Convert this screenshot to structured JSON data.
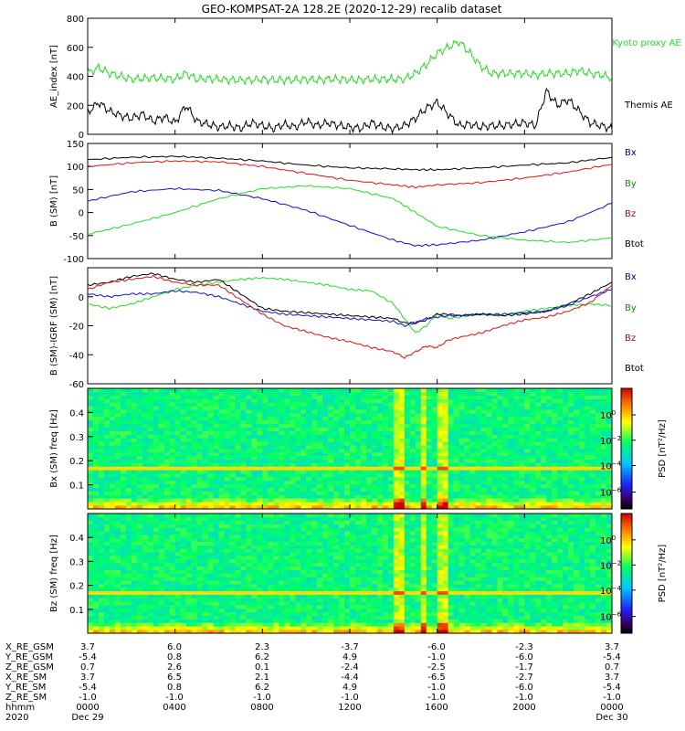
{
  "title": "GEO-KOMPSAT-2A 128.2E (2020-12-29) recalib dataset",
  "colors": {
    "black": "#000000",
    "red": "#e01010",
    "green": "#22dd22",
    "blue": "#1010cc",
    "bx": "#000080",
    "by": "#009a00",
    "bz": "#c00000"
  },
  "chart_data": [
    {
      "type": "line",
      "name": "ae-index",
      "ylabel": "AE_index [nT]",
      "ylim": [
        0,
        800
      ],
      "yticks": [
        0,
        200,
        400,
        600,
        800
      ],
      "xlim_hours": [
        0,
        24
      ],
      "legend": [
        {
          "label": "Kyoto proxy AE",
          "color": "#22dd22"
        },
        {
          "label": "Themis AE",
          "color": "#000000"
        }
      ],
      "series": [
        {
          "name": "Kyoto proxy AE",
          "color": "#22dd22",
          "x": [
            0,
            0.5,
            1,
            1.5,
            2,
            2.5,
            3,
            3.5,
            4,
            4.5,
            5,
            5.5,
            6,
            6.5,
            7,
            7.5,
            8,
            8.5,
            9,
            9.5,
            10,
            10.5,
            11,
            11.5,
            12,
            12.5,
            13,
            13.5,
            14,
            14.5,
            15,
            15.5,
            16,
            16.5,
            17,
            17.5,
            18,
            18.5,
            19,
            19.5,
            20,
            20.5,
            21,
            21.5,
            22,
            22.5,
            23,
            23.5,
            24
          ],
          "y": [
            420,
            460,
            420,
            400,
            380,
            385,
            390,
            385,
            380,
            420,
            380,
            385,
            380,
            375,
            375,
            375,
            380,
            375,
            375,
            375,
            380,
            375,
            380,
            380,
            375,
            375,
            380,
            380,
            380,
            380,
            420,
            480,
            560,
            600,
            640,
            560,
            470,
            420,
            420,
            420,
            420,
            410,
            420,
            420,
            420,
            440,
            420,
            410,
            390
          ]
        },
        {
          "name": "Themis AE",
          "color": "#000000",
          "x": [
            0,
            0.5,
            1,
            1.5,
            2,
            2.5,
            3,
            3.5,
            4,
            4.5,
            5,
            5.5,
            6,
            6.5,
            7,
            7.5,
            8,
            8.5,
            9,
            9.5,
            10,
            10.5,
            11,
            11.5,
            12,
            12.5,
            13,
            13.5,
            14,
            14.5,
            15,
            15.5,
            16,
            16.5,
            17,
            17.5,
            18,
            18.5,
            19,
            19.5,
            20,
            20.5,
            21,
            21.5,
            22,
            22.5,
            23,
            23.5,
            24
          ],
          "y": [
            150,
            220,
            160,
            130,
            110,
            140,
            90,
            120,
            80,
            200,
            90,
            70,
            50,
            60,
            40,
            80,
            60,
            40,
            70,
            50,
            90,
            60,
            80,
            60,
            50,
            40,
            80,
            50,
            40,
            60,
            110,
            180,
            220,
            140,
            60,
            70,
            50,
            60,
            60,
            70,
            80,
            60,
            300,
            200,
            240,
            160,
            80,
            60,
            40
          ]
        }
      ]
    },
    {
      "type": "line",
      "name": "b-sm",
      "ylabel": "B (SM) [nT]",
      "ylim": [
        -100,
        150
      ],
      "yticks": [
        -100,
        -50,
        0,
        50,
        100,
        150
      ],
      "xlim_hours": [
        0,
        24
      ],
      "legend": [
        {
          "label": "Bx",
          "color": "#000080"
        },
        {
          "label": "By",
          "color": "#009a00"
        },
        {
          "label": "Bz",
          "color": "#c00000"
        },
        {
          "label": "Btot",
          "color": "#000000"
        }
      ],
      "series": [
        {
          "name": "Btot",
          "color": "#000000",
          "x": [
            0,
            2,
            4,
            6,
            8,
            10,
            12,
            14,
            15,
            16,
            18,
            20,
            22,
            24
          ],
          "y": [
            115,
            120,
            122,
            118,
            112,
            103,
            97,
            95,
            93,
            93,
            97,
            103,
            108,
            120
          ]
        },
        {
          "name": "Bz",
          "color": "#e01010",
          "x": [
            0,
            2,
            4,
            6,
            8,
            10,
            12,
            14,
            15,
            16,
            18,
            20,
            22,
            24
          ],
          "y": [
            100,
            108,
            112,
            110,
            100,
            85,
            70,
            60,
            55,
            60,
            65,
            75,
            88,
            105
          ]
        },
        {
          "name": "Bx",
          "color": "#1010cc",
          "x": [
            0,
            2,
            4,
            6,
            8,
            10,
            12,
            14,
            15,
            16,
            18,
            20,
            22,
            24
          ],
          "y": [
            25,
            45,
            52,
            48,
            30,
            5,
            -28,
            -60,
            -72,
            -70,
            -60,
            -42,
            -20,
            20
          ]
        },
        {
          "name": "By",
          "color": "#22dd22",
          "x": [
            0,
            2,
            4,
            6,
            8,
            10,
            12,
            14,
            15,
            16,
            18,
            20,
            22,
            24
          ],
          "y": [
            -47,
            -25,
            0,
            30,
            52,
            58,
            52,
            30,
            0,
            -30,
            -50,
            -60,
            -65,
            -55
          ]
        }
      ]
    },
    {
      "type": "line",
      "name": "b-minus-igrf",
      "ylabel": "B (SM)-IGRF (SM) [nT]",
      "ylim": [
        -60,
        20
      ],
      "yticks": [
        -60,
        -40,
        -20,
        0
      ],
      "xlim_hours": [
        0,
        24
      ],
      "legend": [
        {
          "label": "Bx",
          "color": "#000080"
        },
        {
          "label": "By",
          "color": "#009a00"
        },
        {
          "label": "Bz",
          "color": "#c00000"
        },
        {
          "label": "Btot",
          "color": "#000000"
        }
      ],
      "series": [
        {
          "name": "By",
          "color": "#22dd22",
          "x": [
            0,
            1,
            2,
            3,
            4,
            5,
            6,
            7,
            8,
            9,
            10,
            11,
            12,
            13,
            14,
            14.5,
            15,
            15.5,
            16,
            16.5,
            17,
            18,
            19,
            20,
            21,
            22,
            23,
            24
          ],
          "y": [
            -5,
            -8,
            -5,
            0,
            5,
            8,
            10,
            12,
            13,
            12,
            10,
            8,
            5,
            4,
            -5,
            -15,
            -25,
            -20,
            -12,
            -15,
            -14,
            -12,
            -13,
            -10,
            -8,
            -6,
            -5,
            -6
          ]
        },
        {
          "name": "Btot",
          "color": "#000000",
          "x": [
            0,
            1,
            2,
            3,
            4,
            5,
            6,
            7,
            8,
            9,
            10,
            11,
            12,
            13,
            14,
            14.5,
            15,
            15.5,
            16,
            16.5,
            17,
            18,
            19,
            20,
            21,
            22,
            23,
            24
          ],
          "y": [
            8,
            10,
            14,
            16,
            12,
            10,
            12,
            2,
            -8,
            -10,
            -11,
            -12,
            -13,
            -14,
            -15,
            -18,
            -18,
            -16,
            -12,
            -12,
            -13,
            -12,
            -13,
            -12,
            -10,
            -5,
            2,
            10
          ]
        },
        {
          "name": "Bx",
          "color": "#1010cc",
          "x": [
            0,
            1,
            2,
            3,
            4,
            5,
            6,
            7,
            8,
            9,
            10,
            11,
            12,
            13,
            14,
            14.5,
            15,
            15.5,
            16,
            16.5,
            17,
            18,
            19,
            20,
            21,
            22,
            23,
            24
          ],
          "y": [
            2,
            0,
            2,
            2,
            4,
            3,
            0,
            -5,
            -10,
            -12,
            -13,
            -14,
            -15,
            -16,
            -17,
            -20,
            -18,
            -15,
            -14,
            -13,
            -13,
            -12,
            -12,
            -11,
            -10,
            -6,
            0,
            5
          ]
        },
        {
          "name": "Bz",
          "color": "#e01010",
          "x": [
            0,
            1,
            2,
            3,
            4,
            5,
            6,
            7,
            8,
            9,
            10,
            11,
            12,
            13,
            14,
            14.5,
            15,
            15.5,
            16,
            16.5,
            17,
            18,
            19,
            20,
            21,
            22,
            23,
            24
          ],
          "y": [
            5,
            10,
            12,
            14,
            10,
            8,
            8,
            -2,
            -12,
            -20,
            -24,
            -28,
            -31,
            -35,
            -38,
            -42,
            -38,
            -34,
            -35,
            -30,
            -28,
            -25,
            -20,
            -16,
            -14,
            -10,
            -4,
            8
          ]
        }
      ]
    },
    {
      "type": "heatmap",
      "name": "bx-spectrogram",
      "ylabel": "Bx (SM) freq [Hz]",
      "ylim": [
        0,
        0.5
      ],
      "yticks": [
        0.1,
        0.2,
        0.3,
        0.4
      ],
      "colorbar": {
        "label": "PSD [nT²/Hz]",
        "ticks": [
          {
            "base": "10",
            "exp": "0"
          },
          {
            "base": "10",
            "exp": "−2"
          },
          {
            "base": "10",
            "exp": "−4"
          },
          {
            "base": "10",
            "exp": "−6"
          }
        ]
      },
      "harmonic_hz": 0.167,
      "bright_hours": [
        14.2,
        14.4,
        15.4,
        16.2
      ]
    },
    {
      "type": "heatmap",
      "name": "bz-spectrogram",
      "ylabel": "Bz (SM) freq [Hz]",
      "ylim": [
        0,
        0.5
      ],
      "yticks": [
        0.1,
        0.2,
        0.3,
        0.4
      ],
      "colorbar": {
        "label": "PSD [nT²/Hz]",
        "ticks": [
          {
            "base": "10",
            "exp": "0"
          },
          {
            "base": "10",
            "exp": "−2"
          },
          {
            "base": "10",
            "exp": "−4"
          },
          {
            "base": "10",
            "exp": "−6"
          }
        ]
      },
      "harmonic_hz": 0.167,
      "bright_hours": [
        14.2,
        14.4,
        15.4,
        16.2
      ]
    }
  ],
  "footer": {
    "row_labels": [
      "X_RE_GSM",
      "Y_RE_GSM",
      "Z_RE_GSM",
      "X_RE_SM",
      "Y_RE_SM",
      "Z_RE_SM",
      "hhmm",
      "2020"
    ],
    "columns": [
      {
        "values": [
          "3.7",
          "-5.4",
          "0.7",
          "3.7",
          "-5.4",
          "-1.0",
          "0000",
          "Dec 29"
        ]
      },
      {
        "values": [
          "6.0",
          "0.8",
          "2.6",
          "6.5",
          "0.8",
          "-1.0",
          "0400",
          ""
        ]
      },
      {
        "values": [
          "2.3",
          "6.2",
          "0.1",
          "2.1",
          "6.2",
          "-1.0",
          "0800",
          ""
        ]
      },
      {
        "values": [
          "-3.7",
          "4.9",
          "-2.4",
          "-4.4",
          "4.9",
          "-1.0",
          "1200",
          ""
        ]
      },
      {
        "values": [
          "-6.0",
          "-1.0",
          "-2.5",
          "-6.5",
          "-1.0",
          "-1.0",
          "1600",
          ""
        ]
      },
      {
        "values": [
          "-2.3",
          "-6.0",
          "-1.7",
          "-2.7",
          "-6.0",
          "-1.0",
          "2000",
          ""
        ]
      },
      {
        "values": [
          "3.7",
          "-5.4",
          "0.7",
          "3.7",
          "-5.4",
          "-1.0",
          "0000",
          "Dec 30"
        ]
      }
    ]
  }
}
